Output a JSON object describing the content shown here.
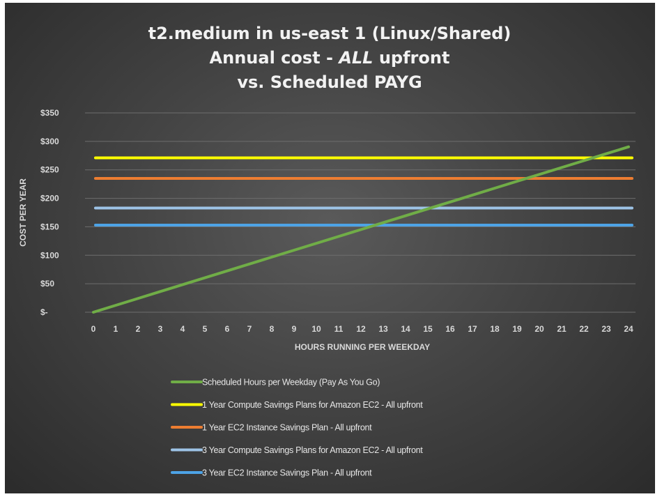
{
  "chart_data": {
    "type": "line",
    "title_lines": [
      "t2.medium  in  us-east  1 (Linux/Shared)",
      "Annual  cost  - ALL  upfront",
      "vs.  Scheduled  PAYG"
    ],
    "xlabel": "HOURS RUNNING PER WEEKDAY",
    "ylabel": "COST PER YEAR",
    "x": [
      0,
      1,
      2,
      3,
      4,
      5,
      6,
      7,
      8,
      9,
      10,
      11,
      12,
      13,
      14,
      15,
      16,
      17,
      18,
      19,
      20,
      21,
      22,
      23,
      24
    ],
    "x_tick_labels": [
      "0",
      "1",
      "2",
      "3",
      "4",
      "5",
      "6",
      "7",
      "8",
      "9",
      "10",
      "11",
      "12",
      "13",
      "14",
      "15",
      "16",
      "17",
      "18",
      "19",
      "20",
      "21",
      "22",
      "23",
      "24"
    ],
    "ylim": [
      0,
      350
    ],
    "y_ticks": [
      0,
      50,
      100,
      150,
      200,
      250,
      300,
      350
    ],
    "y_tick_labels": [
      "$-",
      "$50",
      "$100",
      "$150",
      "$200",
      "$250",
      "$300",
      "$350"
    ],
    "grid": "horizontal",
    "legend_position": "bottom",
    "series": [
      {
        "name": "Scheduled Hours per Weekday (Pay As You Go)",
        "color": "#70ad47",
        "values": [
          0,
          12.1,
          24.2,
          36.3,
          48.4,
          60.5,
          72.6,
          84.7,
          96.8,
          108.9,
          121.0,
          133.1,
          145.2,
          157.3,
          169.4,
          181.5,
          193.6,
          205.7,
          217.8,
          229.9,
          242.0,
          254.1,
          266.2,
          278.3,
          290.4
        ]
      },
      {
        "name": "1 Year Compute Savings Plans for Amazon EC2 - All upfront",
        "color": "#ffff00",
        "constant": 271
      },
      {
        "name": "1 Year EC2 Instance Savings Plan - All upfront",
        "color": "#ed7d31",
        "constant": 235
      },
      {
        "name": "3 Year Compute Savings Plans for Amazon EC2 - All upfront",
        "color": "#9dc3e6",
        "constant": 183
      },
      {
        "name": "3 Year EC2 Instance Savings Plan - All upfront",
        "color": "#4da3e6",
        "constant": 153
      }
    ]
  }
}
